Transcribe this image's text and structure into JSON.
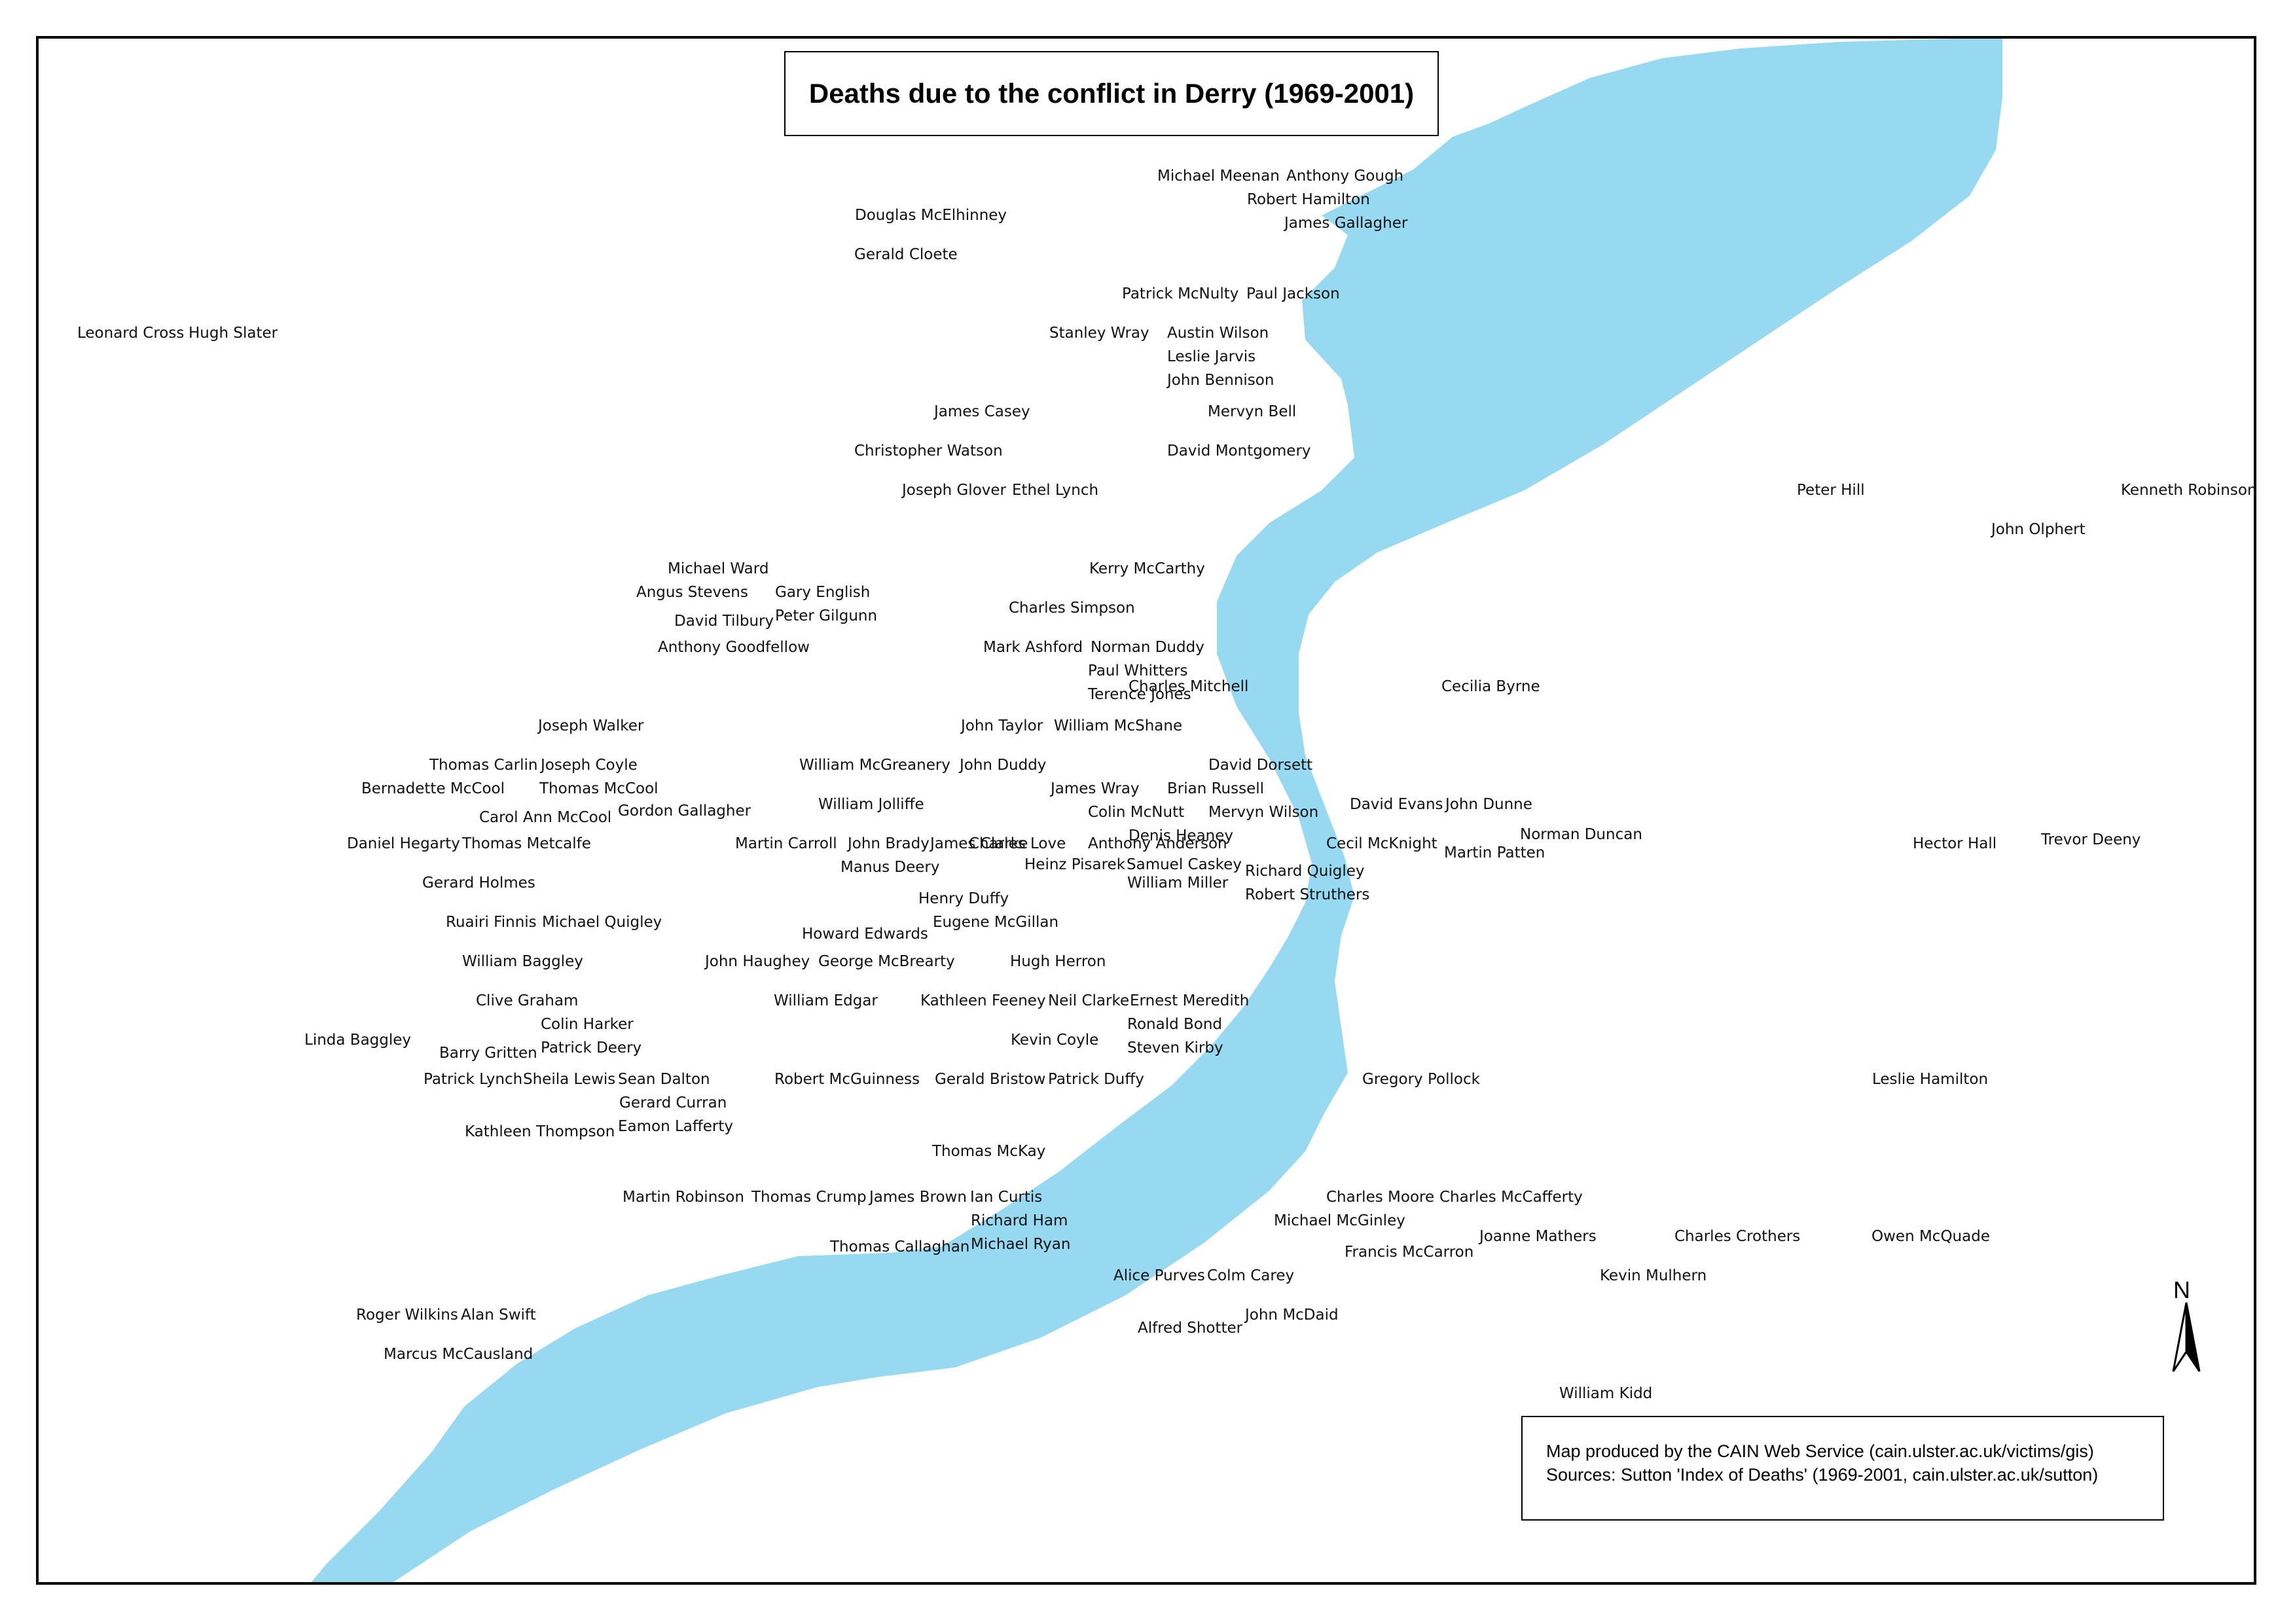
{
  "title": "Deaths due to the conflict in Derry (1969-2001)",
  "credit": {
    "line1": "Map produced by the CAIN Web Service (cain.ulster.ac.uk/victims/gis)",
    "line2": "Sources: Sutton 'Index of Deaths' (1969-2001, cain.ulster.ac.uk/sutton)"
  },
  "north_label": "N",
  "colors": {
    "river": "#97D9F0",
    "border": "#000000",
    "text": "#111111"
  },
  "labels": [
    "Michael Meenan",
    "Anthony Gough",
    "Robert Hamilton",
    "James Gallagher",
    "Douglas McElhinney",
    "Gerald Cloete",
    "Patrick McNulty",
    "Paul Jackson",
    "Leonard Cross",
    "Hugh Slater",
    "Stanley Wray",
    "Austin Wilson",
    "Leslie Jarvis",
    "John Bennison",
    "James Casey",
    "Mervyn Bell",
    "Christopher Watson",
    "David Montgomery",
    "Joseph Glover",
    "Ethel Lynch",
    "Peter Hill",
    "Kenneth Robinson",
    "John Olphert",
    "Michael Ward",
    "Angus Stevens",
    "Gary English",
    "Peter Gilgunn",
    "David Tilbury",
    "Anthony Goodfellow",
    "Kerry McCarthy",
    "Charles Simpson",
    "Mark Ashford",
    "Norman Duddy",
    "Paul Whitters",
    "Terence Jones",
    "Charles Mitchell",
    "Cecilia Byrne",
    "Joseph Walker",
    "John Taylor",
    "William McShane",
    "Thomas Carlin",
    "Joseph Coyle",
    "Bernadette McCool",
    "Thomas McCool",
    "William McGreanery",
    "John Duddy",
    "David Dorsett",
    "Carol Ann McCool",
    "Gordon Gallagher",
    "James Wray",
    "Brian Russell",
    "William Jolliffe",
    "Colin McNutt",
    "Mervyn Wilson",
    "David Evans",
    "John Dunne",
    "Norman Duncan",
    "Daniel Hegarty",
    "Thomas Metcalfe",
    "Martin Carroll",
    "John Brady",
    "James Clarke",
    "Charles Love",
    "Denis Heaney",
    "Anthony Anderson",
    "Cecil McKnight",
    "Martin Patten",
    "Hector Hall",
    "Trevor Deeny",
    "Manus Deery",
    "Heinz Pisarek",
    "Samuel Caskey",
    "Richard Quigley",
    "Gerard Holmes",
    "William Miller",
    "Robert Struthers",
    "Henry Duffy",
    "Ruairi Finnis",
    "Michael Quigley",
    "Eugene McGillan",
    "Howard Edwards",
    "William Baggley",
    "John Haughey",
    "George McBrearty",
    "Hugh Herron",
    "Clive Graham",
    "William Edgar",
    "Kathleen Feeney",
    "Neil Clarke",
    "Ernest Meredith",
    "Colin Harker",
    "Ronald Bond",
    "Linda Baggley",
    "Patrick Deery",
    "Kevin Coyle",
    "Steven Kirby",
    "Barry Gritten",
    "Patrick Lynch",
    "Sheila Lewis",
    "Sean Dalton",
    "Robert McGuinness",
    "Gerald Bristow",
    "Patrick Duffy",
    "Gregory Pollock",
    "Leslie Hamilton",
    "Gerard Curran",
    "Eamon Lafferty",
    "Kathleen Thompson",
    "Thomas McKay",
    "Martin Robinson",
    "Thomas Crump",
    "James Brown",
    "Ian Curtis",
    "Charles Moore",
    "Charles McCafferty",
    "Richard Ham",
    "Michael McGinley",
    "Joanne Mathers",
    "Charles Crothers",
    "Owen McQuade",
    "Thomas Callaghan",
    "Michael Ryan",
    "Francis McCarron",
    "Alice Purves",
    "Colm Carey",
    "Kevin Mulhern",
    "Roger Wilkins",
    "Alan Swift",
    "John McDaid",
    "Alfred Shotter",
    "Marcus McCausland",
    "William Kidd"
  ]
}
